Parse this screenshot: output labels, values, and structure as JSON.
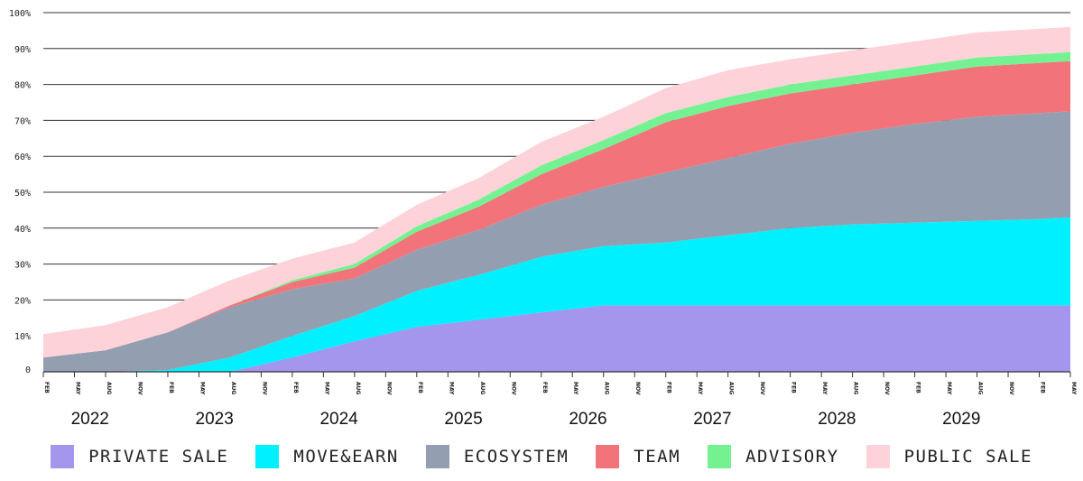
{
  "chart_data": {
    "type": "area",
    "stacked": true,
    "title": "",
    "xlabel": "",
    "ylabel": "",
    "ylim": [
      0,
      100
    ],
    "y_ticks": [
      "0",
      "10%",
      "20%",
      "30%",
      "40%",
      "50%",
      "60%",
      "70%",
      "80%",
      "90%",
      "100%"
    ],
    "y_tick_values": [
      0,
      10,
      20,
      30,
      40,
      50,
      60,
      70,
      80,
      90,
      100
    ],
    "month_ticks": [
      "FEB",
      "MAY",
      "AUG",
      "NOV",
      "FEB",
      "MAY",
      "AUG",
      "NOV",
      "FEB",
      "MAY",
      "AUG",
      "NOV",
      "FEB",
      "MAY",
      "AUG",
      "NOV",
      "FEB",
      "MAY",
      "AUG",
      "NOV",
      "FEB",
      "MAY",
      "AUG",
      "NOV",
      "FEB",
      "MAY",
      "AUG",
      "NOV",
      "FEB",
      "MAY",
      "AUG",
      "NOV",
      "FEB",
      "MAY"
    ],
    "years": [
      "2022",
      "2023",
      "2024",
      "2025",
      "2026",
      "2027",
      "2028",
      "2029"
    ],
    "x": [
      0,
      2,
      4,
      6,
      8,
      10,
      12,
      14,
      16,
      18,
      20,
      22,
      24,
      26,
      28,
      30,
      32,
      33
    ],
    "series": [
      {
        "name": "PRIVATE SALE",
        "color": "#a396ec",
        "values": [
          0,
          0,
          0,
          0,
          4,
          8.5,
          12.5,
          14.5,
          16.5,
          18.5,
          18.5,
          18.5,
          18.5,
          18.5,
          18.5,
          18.5,
          18.5,
          18.5
        ]
      },
      {
        "name": "MOVE&EARN",
        "color": "#00f0ff",
        "values": [
          0,
          0,
          0.5,
          4,
          6,
          7,
          10,
          12.5,
          15.5,
          16.5,
          17.5,
          19.5,
          21.5,
          22.5,
          23,
          23.5,
          24,
          24.5
        ]
      },
      {
        "name": "ECOSYSTEM",
        "color": "#939fb0",
        "values": [
          4,
          6,
          10.5,
          14,
          13,
          10.5,
          11.5,
          12.5,
          14.5,
          16.5,
          19.5,
          21.5,
          23.5,
          25.5,
          27.5,
          29,
          29.5,
          29.5
        ]
      },
      {
        "name": "TEAM",
        "color": "#f2737a",
        "values": [
          0,
          0,
          0,
          0.5,
          2,
          3,
          5,
          6.5,
          8.5,
          10.5,
          14,
          14.5,
          14,
          13.5,
          13.5,
          14,
          14,
          14
        ]
      },
      {
        "name": "ADVISORY",
        "color": "#74f291",
        "values": [
          0,
          0,
          0,
          0,
          0.5,
          1,
          1.5,
          2,
          2.5,
          2.5,
          2.5,
          2.5,
          2.5,
          2.5,
          2.5,
          2.5,
          2.5,
          2.5
        ]
      },
      {
        "name": "PUBLIC SALE",
        "color": "#fdd3d9",
        "values": [
          6.5,
          7,
          7,
          7,
          6,
          6,
          6,
          6,
          6.5,
          6.5,
          7,
          7.5,
          7,
          7,
          7,
          7,
          7,
          7
        ]
      }
    ]
  }
}
